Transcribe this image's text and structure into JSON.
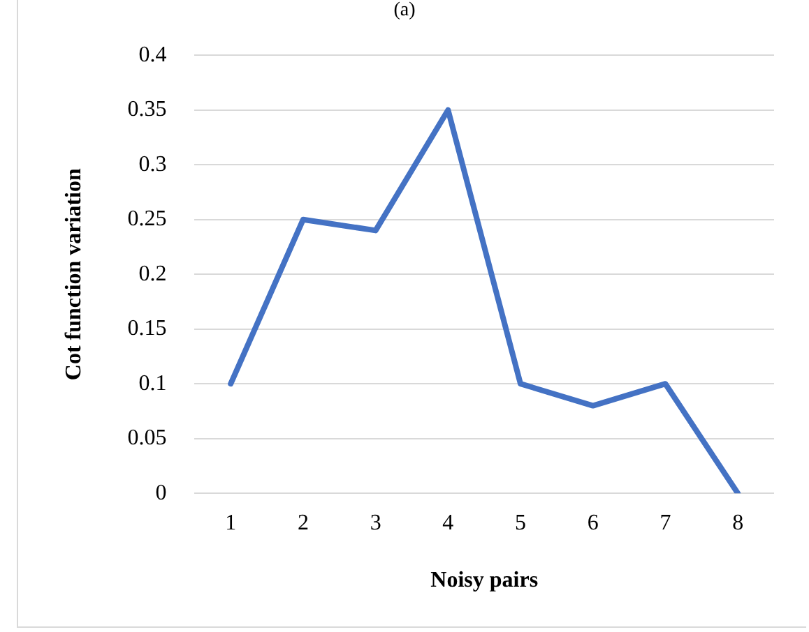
{
  "chart_data": {
    "type": "line",
    "title": "(a)",
    "xlabel": "Noisy pairs",
    "ylabel": "Cot function variation",
    "categories": [
      "1",
      "2",
      "3",
      "4",
      "5",
      "6",
      "7",
      "8"
    ],
    "series": [
      {
        "color": "#4472c4",
        "values": [
          0.1,
          0.25,
          0.24,
          0.35,
          0.1,
          0.08,
          0.1,
          0
        ]
      }
    ],
    "ylim": [
      0,
      0.4
    ],
    "yticks": [
      0,
      0.05,
      0.1,
      0.15,
      0.2,
      0.25,
      0.3,
      0.35,
      0.4
    ],
    "grid": "y",
    "legend": false,
    "marker": "none",
    "line_style": "solid"
  }
}
